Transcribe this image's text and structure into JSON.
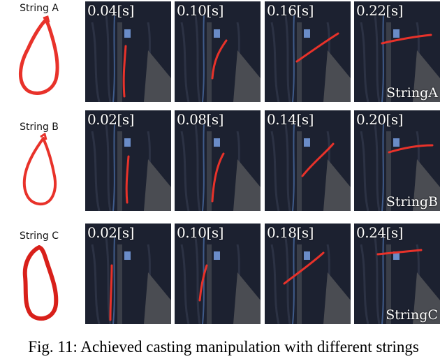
{
  "rows": [
    {
      "label": "String A",
      "name": "StringA",
      "frames": [
        {
          "time": "0.04[s]"
        },
        {
          "time": "0.10[s]"
        },
        {
          "time": "0.16[s]"
        },
        {
          "time": "0.22[s]"
        }
      ]
    },
    {
      "label": "String B",
      "name": "StringB",
      "frames": [
        {
          "time": "0.02[s]"
        },
        {
          "time": "0.08[s]"
        },
        {
          "time": "0.14[s]"
        },
        {
          "time": "0.20[s]"
        }
      ]
    },
    {
      "label": "String C",
      "name": "StringC",
      "frames": [
        {
          "time": "0.02[s]"
        },
        {
          "time": "0.10[s]"
        },
        {
          "time": "0.18[s]"
        },
        {
          "time": "0.24[s]"
        }
      ]
    }
  ],
  "caption": "Fig. 11: Achieved casting manipulation with different strings",
  "colors": {
    "string": "#e8322a",
    "background": "#1c2130",
    "text_overlay": "#ffffff"
  }
}
